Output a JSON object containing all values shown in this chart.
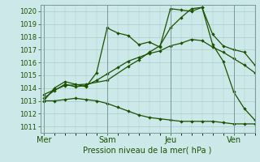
{
  "xlabel": "Pression niveau de la mer( hPa )",
  "ylim": [
    1010.5,
    1020.5
  ],
  "yticks": [
    1011,
    1012,
    1013,
    1014,
    1015,
    1016,
    1017,
    1018,
    1019,
    1020
  ],
  "bg_color": "#cde8e8",
  "grid_color": "#a8cccc",
  "line_color": "#1a5200",
  "day_labels": [
    "Mer",
    "Sam",
    "Jeu",
    "Ven"
  ],
  "day_positions": [
    0,
    36,
    72,
    108
  ],
  "xlim": [
    -2,
    120
  ],
  "line1_x": [
    0,
    6,
    12,
    18,
    24,
    30,
    36,
    42,
    48,
    54,
    60,
    66,
    72,
    78,
    84,
    90,
    96,
    102,
    108,
    114,
    120
  ],
  "line1_y": [
    1013.0,
    1014.0,
    1014.5,
    1014.3,
    1014.1,
    1015.2,
    1018.7,
    1018.3,
    1018.1,
    1017.4,
    1017.6,
    1017.2,
    1020.2,
    1020.1,
    1020.0,
    1020.3,
    1018.2,
    1017.3,
    1017.0,
    1016.8,
    1015.8
  ],
  "line2_x": [
    0,
    6,
    12,
    18,
    24,
    30,
    36,
    42,
    48,
    54,
    60,
    66,
    72,
    78,
    84,
    90,
    96,
    102,
    108,
    114,
    120
  ],
  "line2_y": [
    1013.2,
    1013.8,
    1014.3,
    1014.1,
    1014.2,
    1014.6,
    1015.1,
    1015.6,
    1016.1,
    1016.4,
    1016.7,
    1016.9,
    1017.3,
    1017.5,
    1017.8,
    1017.7,
    1017.2,
    1016.8,
    1016.3,
    1015.8,
    1015.2
  ],
  "line3_x": [
    0,
    6,
    12,
    18,
    24,
    30,
    36,
    42,
    48,
    54,
    60,
    66,
    72,
    78,
    84,
    90,
    96,
    102,
    108,
    114,
    120
  ],
  "line3_y": [
    1013.0,
    1013.0,
    1013.1,
    1013.2,
    1013.1,
    1013.0,
    1012.8,
    1012.5,
    1012.2,
    1011.9,
    1011.7,
    1011.6,
    1011.5,
    1011.4,
    1011.4,
    1011.4,
    1011.4,
    1011.3,
    1011.2,
    1011.2,
    1011.2
  ],
  "line4_x": [
    0,
    12,
    24,
    36,
    48,
    54,
    60,
    66,
    72,
    78,
    84,
    90,
    96,
    102,
    108,
    114,
    120
  ],
  "line4_y": [
    1013.5,
    1014.2,
    1014.3,
    1014.6,
    1015.7,
    1016.2,
    1016.8,
    1017.3,
    1018.7,
    1019.5,
    1020.2,
    1020.3,
    1017.4,
    1016.1,
    1013.7,
    1012.4,
    1011.5
  ]
}
